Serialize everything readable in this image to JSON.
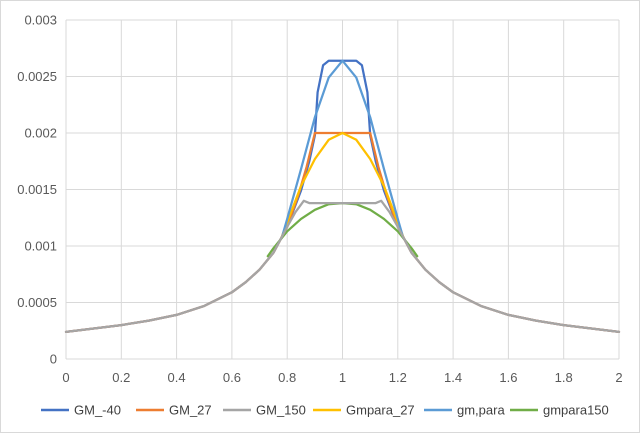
{
  "chart_data": {
    "type": "line",
    "title": "",
    "xlabel": "",
    "ylabel": "",
    "xlim": [
      0,
      2
    ],
    "ylim": [
      0,
      0.003
    ],
    "x_ticks": [
      0,
      0.2,
      0.4,
      0.6,
      0.8,
      1,
      1.2,
      1.4,
      1.6,
      1.8,
      2
    ],
    "y_ticks": [
      0,
      0.0005,
      0.001,
      0.0015,
      0.002,
      0.0025,
      0.003
    ],
    "x_tick_labels": [
      "0",
      "0.2",
      "0.4",
      "0.6",
      "0.8",
      "1",
      "1.2",
      "1.4",
      "1.6",
      "1.8",
      "2"
    ],
    "y_tick_labels": [
      "0",
      "0.0005",
      "0.001",
      "0.0015",
      "0.002",
      "0.0025",
      "0.003"
    ],
    "grid": true,
    "legend_position": "bottom",
    "series": [
      {
        "name": "GM_-40",
        "color": "#4472c4",
        "x": [
          0,
          0.1,
          0.2,
          0.3,
          0.4,
          0.5,
          0.6,
          0.65,
          0.7,
          0.75,
          0.8,
          0.85,
          0.88,
          0.9,
          0.91,
          0.93,
          0.95,
          1.0,
          1.05,
          1.07,
          1.09,
          1.1,
          1.12,
          1.15,
          1.2,
          1.25,
          1.3,
          1.35,
          1.4,
          1.5,
          1.6,
          1.7,
          1.8,
          1.9,
          2.0
        ],
        "y": [
          0.00024,
          0.00027,
          0.0003,
          0.00034,
          0.00039,
          0.00047,
          0.00059,
          0.00068,
          0.00079,
          0.00094,
          0.00117,
          0.00149,
          0.00175,
          0.00198,
          0.00236,
          0.0026,
          0.00264,
          0.00264,
          0.00264,
          0.0026,
          0.00236,
          0.00198,
          0.00175,
          0.00149,
          0.00117,
          0.00094,
          0.00079,
          0.00068,
          0.00059,
          0.00047,
          0.00039,
          0.00034,
          0.0003,
          0.00027,
          0.00024
        ]
      },
      {
        "name": "GM_27",
        "color": "#ed7d31",
        "x": [
          0,
          0.1,
          0.2,
          0.3,
          0.4,
          0.5,
          0.6,
          0.65,
          0.7,
          0.75,
          0.8,
          0.84,
          0.87,
          0.9,
          0.95,
          1.0,
          1.05,
          1.1,
          1.13,
          1.16,
          1.2,
          1.25,
          1.3,
          1.35,
          1.4,
          1.5,
          1.6,
          1.7,
          1.8,
          1.9,
          2.0
        ],
        "y": [
          0.00024,
          0.00027,
          0.0003,
          0.00034,
          0.00039,
          0.00047,
          0.00059,
          0.00068,
          0.00079,
          0.00094,
          0.00117,
          0.00145,
          0.0017,
          0.002,
          0.002,
          0.002,
          0.002,
          0.002,
          0.0017,
          0.00145,
          0.00117,
          0.00094,
          0.00079,
          0.00068,
          0.00059,
          0.00047,
          0.00039,
          0.00034,
          0.0003,
          0.00027,
          0.00024
        ]
      },
      {
        "name": "GM_150",
        "color": "#a5a5a5",
        "x": [
          0,
          0.1,
          0.2,
          0.3,
          0.4,
          0.5,
          0.6,
          0.65,
          0.7,
          0.75,
          0.8,
          0.83,
          0.86,
          0.88,
          0.9,
          0.95,
          1.0,
          1.05,
          1.1,
          1.12,
          1.14,
          1.17,
          1.2,
          1.25,
          1.3,
          1.35,
          1.4,
          1.5,
          1.6,
          1.7,
          1.8,
          1.9,
          2.0
        ],
        "y": [
          0.00024,
          0.00027,
          0.0003,
          0.00034,
          0.00039,
          0.00047,
          0.00059,
          0.00068,
          0.00079,
          0.00094,
          0.00117,
          0.0013,
          0.0014,
          0.00138,
          0.00138,
          0.00138,
          0.00138,
          0.00138,
          0.00138,
          0.00138,
          0.0014,
          0.0013,
          0.00117,
          0.00094,
          0.00079,
          0.00068,
          0.00059,
          0.00047,
          0.00039,
          0.00034,
          0.0003,
          0.00027,
          0.00024
        ]
      },
      {
        "name": "Gmpara_27",
        "color": "#ffc000",
        "x": [
          0.78,
          0.8,
          0.85,
          0.9,
          0.95,
          1.0,
          1.05,
          1.1,
          1.15,
          1.2,
          1.22
        ],
        "y": [
          0.00108,
          0.00121,
          0.00153,
          0.00177,
          0.00194,
          0.002,
          0.00194,
          0.00177,
          0.00153,
          0.00121,
          0.00108
        ]
      },
      {
        "name": "gm,para",
        "color": "#5b9bd5",
        "x": [
          0.78,
          0.8,
          0.85,
          0.9,
          0.95,
          1.0,
          1.05,
          1.1,
          1.15,
          1.2,
          1.22
        ],
        "y": [
          0.00107,
          0.00124,
          0.00168,
          0.00214,
          0.00249,
          0.00264,
          0.00249,
          0.00214,
          0.00168,
          0.00124,
          0.00107
        ]
      },
      {
        "name": "gmpara150",
        "color": "#70ad47",
        "x": [
          0.73,
          0.75,
          0.8,
          0.85,
          0.9,
          0.95,
          1.0,
          1.05,
          1.1,
          1.15,
          1.2,
          1.25,
          1.27
        ],
        "y": [
          0.00091,
          0.00098,
          0.00113,
          0.00124,
          0.00132,
          0.00137,
          0.00138,
          0.00137,
          0.00132,
          0.00124,
          0.00113,
          0.00098,
          0.00091
        ]
      }
    ]
  }
}
